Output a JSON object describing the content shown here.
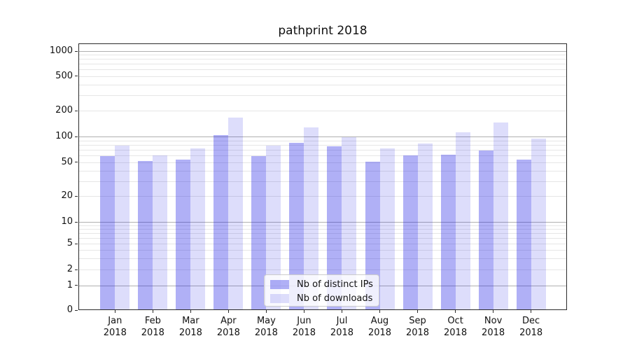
{
  "chart_data": {
    "type": "bar",
    "title": "pathprint 2018",
    "categories": [
      "Jan 2018",
      "Feb 2018",
      "Mar 2018",
      "Apr 2018",
      "May 2018",
      "Jun 2018",
      "Jul 2018",
      "Aug 2018",
      "Sep 2018",
      "Oct 2018",
      "Nov 2018",
      "Dec 2018"
    ],
    "series": [
      {
        "name": "Nb of distinct IPs",
        "color": "rgba(30,30,230,0.35)",
        "values": [
          59,
          52,
          54,
          103,
          59,
          84,
          77,
          51,
          60,
          61,
          69,
          54
        ]
      },
      {
        "name": "Nb of downloads",
        "color": "rgba(30,30,230,0.15)",
        "values": [
          78,
          60,
          73,
          165,
          78,
          128,
          99,
          73,
          83,
          113,
          145,
          95
        ]
      }
    ],
    "xlabel": "",
    "ylabel": "",
    "yscale": "symlog",
    "yticks": [
      1000,
      500,
      200,
      100,
      50,
      20,
      10,
      5,
      2,
      1,
      0
    ],
    "ylim": [
      0,
      1230
    ],
    "grid": "both",
    "legend_position": "lower center"
  }
}
